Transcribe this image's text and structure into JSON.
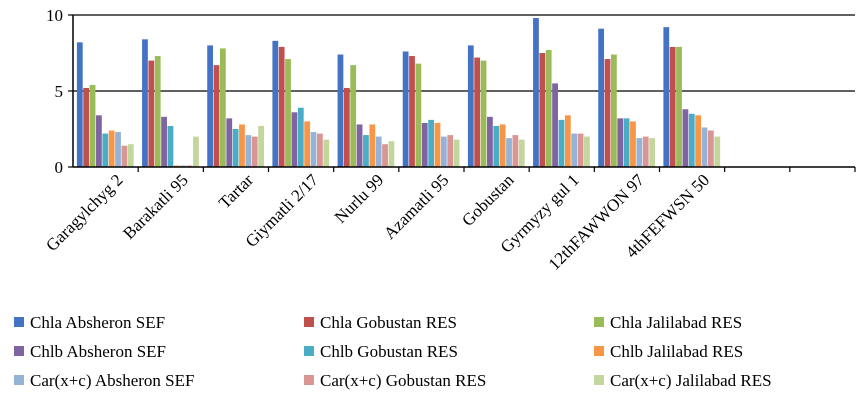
{
  "chart_data": {
    "type": "bar",
    "title": "",
    "xlabel": "",
    "ylabel": "",
    "ylim": [
      0,
      10
    ],
    "y_ticks": [
      "0",
      "5",
      "10"
    ],
    "grid": "horizontal",
    "legend_position": "bottom",
    "categories": [
      "Garagylchyg 2",
      "Barakatli 95",
      "Tartar",
      "Giymatli 2/17",
      "Nurlu 99",
      "Azamatli 95",
      "Gobustan",
      "Gyrmyzy gul 1",
      "12thFAWWON 97",
      "4thFEFWSN 50",
      "",
      ""
    ],
    "series": [
      {
        "name": "Chla Absheron SEF",
        "color": "#4472C4",
        "values": [
          8.2,
          8.4,
          8.0,
          8.3,
          7.4,
          7.6,
          8.0,
          9.8,
          9.1,
          9.2,
          null,
          null
        ]
      },
      {
        "name": "Chla Gobustan RES",
        "color": "#C0504D",
        "values": [
          5.2,
          7.0,
          6.7,
          7.9,
          5.2,
          7.3,
          7.2,
          7.5,
          7.1,
          7.9,
          null,
          null
        ]
      },
      {
        "name": "Chla Jalilabad RES",
        "color": "#9BBB59",
        "values": [
          5.4,
          7.3,
          7.8,
          7.1,
          6.7,
          6.8,
          7.0,
          7.7,
          7.4,
          7.9,
          null,
          null
        ]
      },
      {
        "name": "Chlb Absheron SEF",
        "color": "#8064A2",
        "values": [
          3.4,
          3.3,
          3.2,
          3.6,
          2.8,
          2.9,
          3.3,
          5.5,
          3.2,
          3.8,
          null,
          null
        ]
      },
      {
        "name": "Chlb Gobustan RES",
        "color": "#4BACC6",
        "values": [
          2.2,
          2.7,
          2.5,
          3.9,
          2.1,
          3.1,
          2.7,
          3.1,
          3.2,
          3.5,
          null,
          null
        ]
      },
      {
        "name": "Chlb Jalilabad RES",
        "color": "#F79646",
        "values": [
          2.4,
          0.1,
          2.8,
          3.0,
          2.8,
          2.9,
          2.8,
          3.4,
          3.0,
          3.4,
          null,
          null
        ]
      },
      {
        "name": "Car(x+c) Absheron SEF",
        "color": "#95B3D7",
        "values": [
          2.3,
          0.1,
          2.1,
          2.3,
          2.0,
          2.0,
          1.9,
          2.2,
          1.9,
          2.6,
          null,
          null
        ]
      },
      {
        "name": "Car(x+c) Gobustan RES",
        "color": "#D99694",
        "values": [
          1.4,
          0.1,
          2.0,
          2.2,
          1.5,
          2.1,
          2.1,
          2.2,
          2.0,
          2.4,
          null,
          null
        ]
      },
      {
        "name": "Car(x+c) Jalilabad RES",
        "color": "#C3D69B",
        "values": [
          1.5,
          2.0,
          2.7,
          1.8,
          1.7,
          1.8,
          1.8,
          2.0,
          1.9,
          2.0,
          null,
          null
        ]
      }
    ]
  }
}
